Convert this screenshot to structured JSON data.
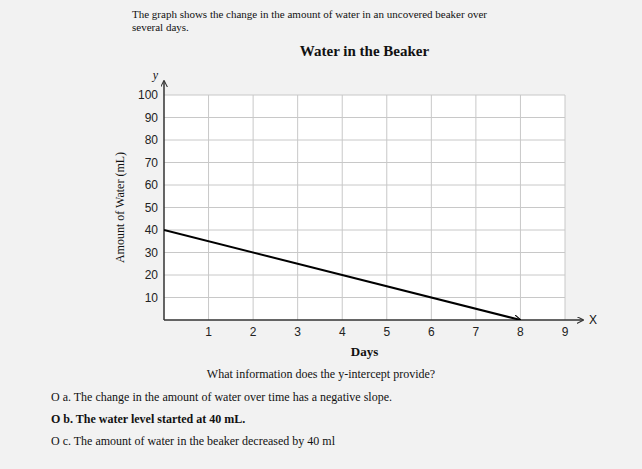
{
  "chart_data": {
    "type": "line",
    "title": "Water in the Beaker",
    "x_label": "Days",
    "y_label": "Amount of Water (mL)",
    "x": [
      0,
      8
    ],
    "values": [
      40,
      0
    ],
    "color": "#000000",
    "xlim": [
      0,
      9
    ],
    "ylim": [
      0,
      100
    ],
    "xticks": [
      1,
      2,
      3,
      4,
      5,
      6,
      7,
      8,
      9
    ],
    "yticks": [
      10,
      20,
      30,
      40,
      50,
      60,
      70,
      80,
      90,
      100
    ],
    "grid": true,
    "annotations": [
      "The graph shows the change in the amount of water in an uncovered beaker over",
      "several days.",
      "X",
      "y",
      "What information does the y-intercept provide?",
      "O a. The change in the amount of water over time has a negative slope.",
      "O b. The water level started at 40 mL.",
      "O c. The amount of water in the beaker decreased by 40 ml"
    ]
  }
}
